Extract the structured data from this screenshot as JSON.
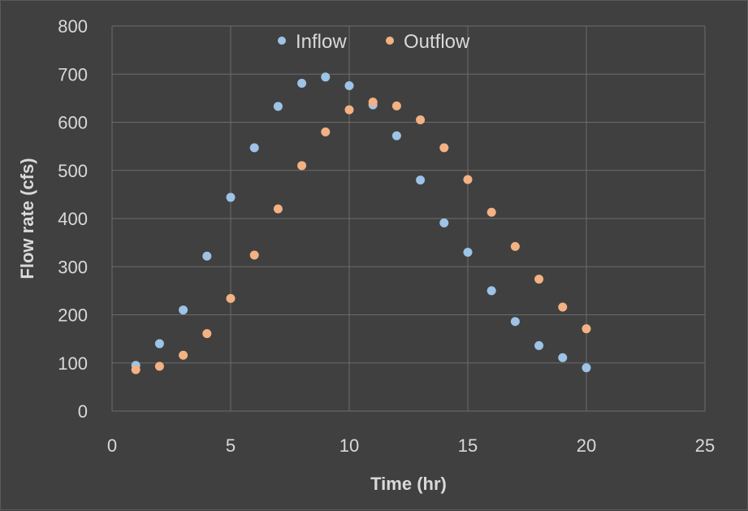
{
  "chart_data": {
    "type": "scatter",
    "xlabel": "Time (hr)",
    "ylabel": "Flow rate (cfs)",
    "xlim": [
      0,
      25
    ],
    "ylim": [
      0,
      800
    ],
    "x_ticks": [
      0,
      5,
      10,
      15,
      20,
      25
    ],
    "y_ticks": [
      0,
      100,
      200,
      300,
      400,
      500,
      600,
      700,
      800
    ],
    "grid": true,
    "legend_position": "top-center",
    "series": [
      {
        "name": "Inflow",
        "color": "#9dc3e6",
        "x": [
          1,
          2,
          3,
          4,
          5,
          6,
          7,
          8,
          9,
          10,
          11,
          12,
          13,
          14,
          15,
          16,
          17,
          18,
          19,
          20
        ],
        "y": [
          95,
          140,
          210,
          322,
          444,
          547,
          633,
          681,
          694,
          676,
          636,
          572,
          480,
          391,
          330,
          250,
          186,
          136,
          111,
          90
        ]
      },
      {
        "name": "Outflow",
        "color": "#f4b183",
        "x": [
          1,
          2,
          3,
          4,
          5,
          6,
          7,
          8,
          9,
          10,
          11,
          12,
          13,
          14,
          15,
          16,
          17,
          18,
          19,
          20
        ],
        "y": [
          86,
          93,
          116,
          161,
          234,
          324,
          420,
          510,
          580,
          626,
          642,
          634,
          605,
          547,
          481,
          413,
          342,
          274,
          216,
          171
        ]
      }
    ]
  }
}
